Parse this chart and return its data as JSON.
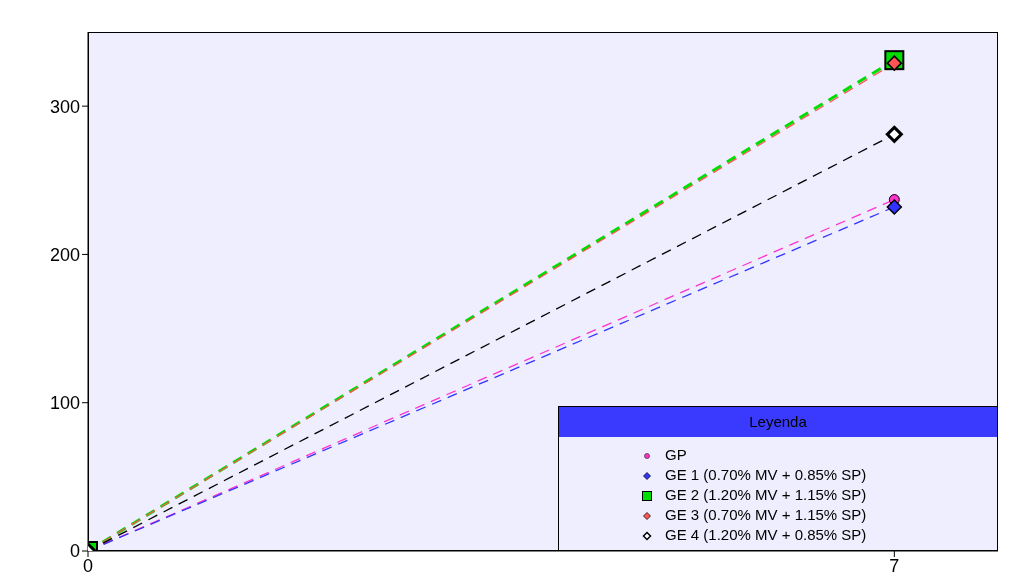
{
  "chart_data": {
    "type": "line",
    "x": [
      0,
      7
    ],
    "xlim": [
      0,
      7.9
    ],
    "xticks": [
      0,
      7
    ],
    "ylim": [
      0,
      350
    ],
    "yticks": [
      0,
      100,
      200,
      300
    ],
    "legend": "bottom right",
    "legend_title": "Leyenda",
    "grid": false,
    "series": [
      {
        "name": "GP",
        "color": "#ff33cc",
        "values": [
          0,
          237
        ],
        "marker": "circle",
        "line_style": "dashed"
      },
      {
        "name": "GE 1 (0.70% MV + 0.85% SP)",
        "color": "#3333ff",
        "values": [
          0,
          232
        ],
        "marker": "diamond",
        "line_style": "dashed"
      },
      {
        "name": "GE 2 (1.20% MV + 1.15% SP)",
        "color": "#00dd00",
        "values": [
          0,
          331
        ],
        "marker": "square",
        "line_style": "dashed"
      },
      {
        "name": "GE 3 (0.70% MV + 1.15% SP)",
        "color": "#ff5555",
        "values": [
          0,
          329
        ],
        "marker": "diamond",
        "line_style": "dashed"
      },
      {
        "name": "GE 4 (1.20% MV + 0.85% SP)",
        "color": "#000000",
        "values": [
          0,
          281
        ],
        "marker": "diamond",
        "line_style": "dashed"
      }
    ]
  }
}
